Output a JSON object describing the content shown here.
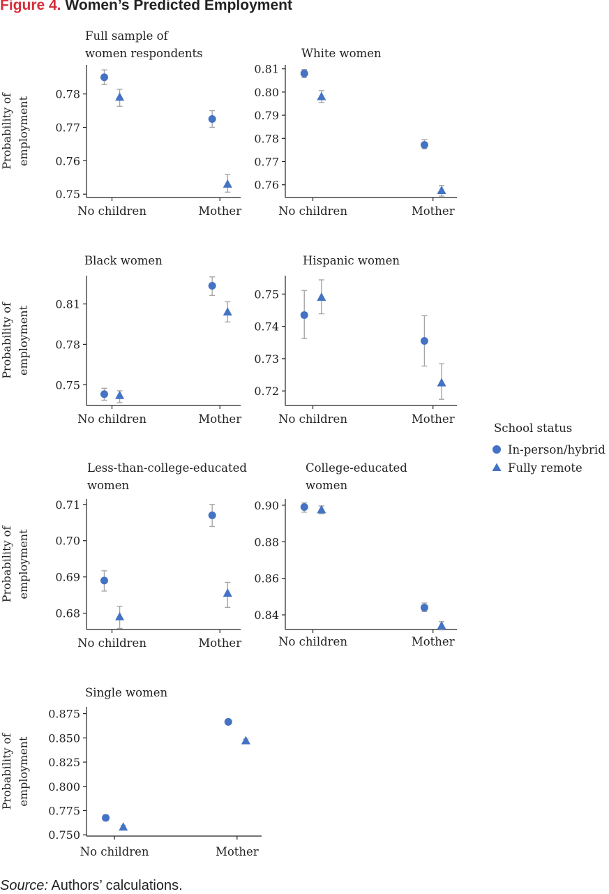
{
  "figure": {
    "label": "Figure 4.",
    "title": "Women’s Predicted Employment",
    "source_label": "Source:",
    "source_text": "Authors’ calculations."
  },
  "legend": {
    "title": "School status",
    "items": [
      {
        "label": "In-person/hybrid",
        "marker": "circle",
        "color": "#4472c4"
      },
      {
        "label": "Fully remote",
        "marker": "triangle",
        "color": "#4472c4"
      }
    ]
  },
  "colors": {
    "marker": "#4472c4",
    "error_bar": "#a6a6a6",
    "axis": "#222222"
  },
  "chart_data": [
    {
      "type": "scatter",
      "title": [
        "Full sample of",
        "women respondents"
      ],
      "ylabel": [
        "Probability of",
        "employment"
      ],
      "categories": [
        "No children",
        "Mother"
      ],
      "ylim": [
        0.749,
        0.7887
      ],
      "yticks": [
        0.75,
        0.76,
        0.77,
        0.78
      ],
      "yticklabels": [
        "0.75",
        "0.76",
        "0.77",
        "0.78"
      ],
      "series": [
        {
          "name": "In-person/hybrid",
          "marker": "circle",
          "values": [
            0.785,
            0.7725
          ],
          "lo": [
            0.7828,
            0.77
          ],
          "hi": [
            0.7872,
            0.775
          ]
        },
        {
          "name": "Fully remote",
          "marker": "triangle",
          "values": [
            0.779,
            0.753
          ],
          "lo": [
            0.7763,
            0.7506
          ],
          "hi": [
            0.7814,
            0.7559
          ]
        }
      ]
    },
    {
      "type": "scatter",
      "title": [
        "White women"
      ],
      "ylabel": [],
      "categories": [
        "No children",
        "Mother"
      ],
      "ylim": [
        0.7545,
        0.8117
      ],
      "yticks": [
        0.76,
        0.77,
        0.78,
        0.79,
        0.8,
        0.81
      ],
      "yticklabels": [
        "0.76",
        "0.77",
        "0.78",
        "0.79",
        "0.80",
        "0.81"
      ],
      "series": [
        {
          "name": "In-person/hybrid",
          "marker": "circle",
          "values": [
            0.808,
            0.7772
          ],
          "lo": [
            0.8062,
            0.7755
          ],
          "hi": [
            0.8097,
            0.7795
          ]
        },
        {
          "name": "Fully remote",
          "marker": "triangle",
          "values": [
            0.798,
            0.7575
          ],
          "lo": [
            0.7955,
            0.7551
          ],
          "hi": [
            0.8006,
            0.7597
          ]
        }
      ]
    },
    {
      "type": "scatter",
      "title": [
        "Black women"
      ],
      "ylabel": [
        "Probability of",
        "employment"
      ],
      "categories": [
        "No children",
        "Mother"
      ],
      "ylim": [
        0.7346,
        0.831
      ],
      "yticks": [
        0.75,
        0.78,
        0.81
      ],
      "yticklabels": [
        "0.75",
        "0.78",
        "0.81"
      ],
      "series": [
        {
          "name": "In-person/hybrid",
          "marker": "circle",
          "values": [
            0.743,
            0.8235
          ],
          "lo": [
            0.7385,
            0.8163
          ],
          "hi": [
            0.7474,
            0.8301
          ]
        },
        {
          "name": "Fully remote",
          "marker": "triangle",
          "values": [
            0.742,
            0.804
          ],
          "lo": [
            0.7367,
            0.7966
          ],
          "hi": [
            0.7455,
            0.8116
          ]
        }
      ]
    },
    {
      "type": "scatter",
      "title": [
        "Hispanic women"
      ],
      "ylabel": [],
      "categories": [
        "No children",
        "Mother"
      ],
      "ylim": [
        0.7155,
        0.7557
      ],
      "yticks": [
        0.72,
        0.73,
        0.74,
        0.75
      ],
      "yticklabels": [
        "0.72",
        "0.73",
        "0.74",
        "0.75"
      ],
      "series": [
        {
          "name": "In-person/hybrid",
          "marker": "circle",
          "values": [
            0.7435,
            0.7355
          ],
          "lo": [
            0.7362,
            0.7277
          ],
          "hi": [
            0.7511,
            0.7433
          ]
        },
        {
          "name": "Fully remote",
          "marker": "triangle",
          "values": [
            0.749,
            0.7225
          ],
          "lo": [
            0.7439,
            0.7174
          ],
          "hi": [
            0.7544,
            0.7284
          ]
        }
      ]
    },
    {
      "type": "scatter",
      "title": [
        "Less-than-college-educated",
        "women"
      ],
      "ylabel": [
        "Probability of",
        "employment"
      ],
      "categories": [
        "No children",
        "Mother"
      ],
      "ylim": [
        0.6755,
        0.7115
      ],
      "yticks": [
        0.68,
        0.69,
        0.7,
        0.71
      ],
      "yticklabels": [
        "0.68",
        "0.69",
        "0.70",
        "0.71"
      ],
      "series": [
        {
          "name": "In-person/hybrid",
          "marker": "circle",
          "values": [
            0.689,
            0.707
          ],
          "lo": [
            0.6861,
            0.7039
          ],
          "hi": [
            0.6917,
            0.71
          ]
        },
        {
          "name": "Fully remote",
          "marker": "triangle",
          "values": [
            0.679,
            0.6855
          ],
          "lo": [
            0.6758,
            0.6816
          ],
          "hi": [
            0.6819,
            0.6885
          ]
        }
      ]
    },
    {
      "type": "scatter",
      "title": [
        "College-educated",
        "women"
      ],
      "ylabel": [],
      "categories": [
        "No children",
        "Mother"
      ],
      "ylim": [
        0.832,
        0.9034
      ],
      "yticks": [
        0.84,
        0.86,
        0.88,
        0.9
      ],
      "yticklabels": [
        "0.84",
        "0.86",
        "0.88",
        "0.90"
      ],
      "series": [
        {
          "name": "In-person/hybrid",
          "marker": "circle",
          "values": [
            0.899,
            0.844
          ],
          "lo": [
            0.8962,
            0.8418
          ],
          "hi": [
            0.9013,
            0.8465
          ]
        },
        {
          "name": "Fully remote",
          "marker": "triangle",
          "values": [
            0.8975,
            0.834
          ],
          "lo": [
            0.8953,
            0.8318
          ],
          "hi": [
            0.8996,
            0.8363
          ]
        }
      ]
    },
    {
      "type": "scatter",
      "title": [
        "Single women"
      ],
      "ylabel": [
        "Probability of",
        "employment"
      ],
      "categories": [
        "No children",
        "Mother"
      ],
      "ylim": [
        0.7487,
        0.8819
      ],
      "yticks": [
        0.75,
        0.775,
        0.8,
        0.825,
        0.85,
        0.875
      ],
      "yticklabels": [
        "0.750",
        "0.775",
        "0.800",
        "0.825",
        "0.850",
        "0.875"
      ],
      "series": [
        {
          "name": "In-person/hybrid",
          "marker": "circle",
          "values": [
            0.7675,
            0.8665
          ],
          "lo": [
            0.7645,
            0.8645
          ],
          "hi": [
            0.7705,
            0.869
          ]
        },
        {
          "name": "Fully remote",
          "marker": "triangle",
          "values": [
            0.758,
            0.847
          ],
          "lo": [
            0.7563,
            0.8453
          ],
          "hi": [
            0.7595,
            0.8488
          ]
        }
      ]
    }
  ]
}
